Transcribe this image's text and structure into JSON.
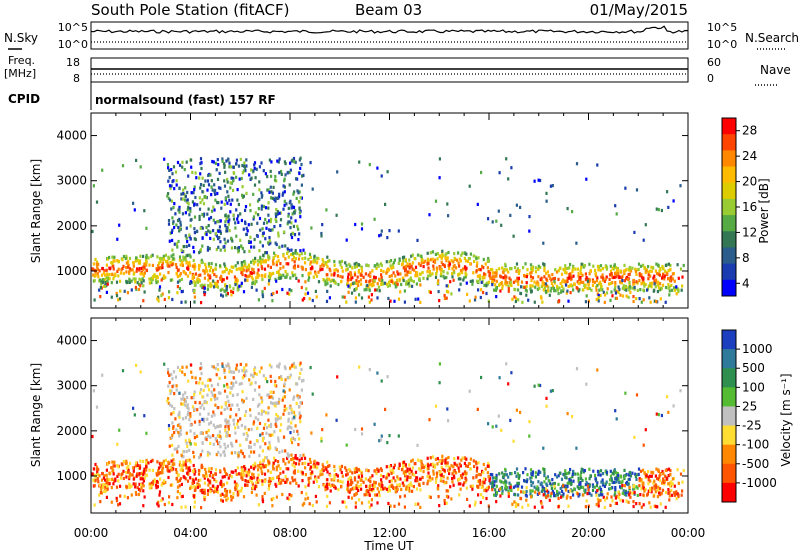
{
  "header": {
    "station": "South Pole Station (fitACF)",
    "beam": "Beam 03",
    "date": "01/May/2015"
  },
  "top_panels": {
    "nsky_label": "N.Sky",
    "nsearch_label": "N.Search",
    "freq_label": "Freq.",
    "freq_unit": "[MHz]",
    "nave_label": "Nave",
    "cpid_label": "CPID",
    "cpid_value": "normalsound (fast) 157 RF",
    "noise_ticks": [
      "10^5",
      "10^0"
    ],
    "freq_ticks": [
      "18",
      "8"
    ],
    "nave_ticks": [
      "60",
      "0"
    ]
  },
  "chart_data": [
    {
      "type": "heatmap",
      "title": "",
      "xlabel": "",
      "ylabel": "Slant Range [km]",
      "xlim": [
        "00:00",
        "24:00"
      ],
      "ylim": [
        180,
        4500
      ],
      "yticks": [
        1000,
        2000,
        3000,
        4000
      ],
      "colorbar": {
        "label": "Power [dB]",
        "ticks": [
          "28",
          "24",
          "20",
          "16",
          "12",
          "8",
          "4"
        ],
        "colors": [
          "#ff0000",
          "#ff4400",
          "#ff8800",
          "#ffbb00",
          "#ddcc00",
          "#99cc33",
          "#55aa44",
          "#337755",
          "#2a5c8c",
          "#1a3cb0",
          "#0000ff"
        ]
      },
      "echo_regions": [
        {
          "x": [
            0.0,
            23.8
          ],
          "y": [
            700,
            1300
          ]
        },
        {
          "x": [
            3.0,
            8.5
          ],
          "y": [
            1400,
            3500
          ]
        },
        {
          "x": [
            0.2,
            2.5
          ],
          "y": [
            400,
            800
          ]
        }
      ]
    },
    {
      "type": "heatmap",
      "title": "",
      "xlabel": "Time UT",
      "ylabel": "Slant Range [km]",
      "xlim": [
        "00:00",
        "24:00"
      ],
      "ylim": [
        180,
        4500
      ],
      "yticks": [
        1000,
        2000,
        3000,
        4000
      ],
      "xticks": [
        "00:00",
        "04:00",
        "08:00",
        "12:00",
        "16:00",
        "20:00",
        "00:00"
      ],
      "colorbar": {
        "label": "Velocity [m s⁻¹]",
        "ticks": [
          "1000",
          "500",
          "100",
          "25",
          "-25",
          "-100",
          "-500",
          "-1000"
        ],
        "colors": [
          "#1c3fbf",
          "#2f7a9a",
          "#2f8f4f",
          "#55bb33",
          "#c0c0c0",
          "#ffdd33",
          "#ff8800",
          "#ff5500",
          "#ff0000"
        ]
      }
    }
  ]
}
